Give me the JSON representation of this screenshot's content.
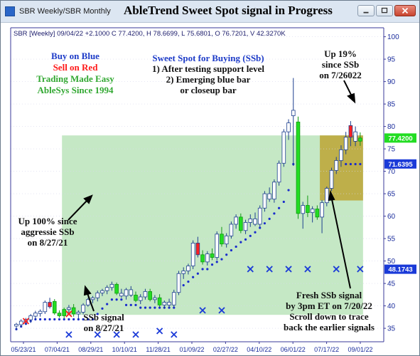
{
  "window": {
    "tab_label": "SBR Weekly/SBR Monthly",
    "title": "AbleTrend Sweet Spot signal in Progress"
  },
  "colors": {
    "up_bar": "#3b82f6",
    "down_bar": "#ff2020",
    "strong_up": "#22dd22",
    "dots": "#1a2ccc",
    "stop_x": "#1a3ad8",
    "green_zone": "#9fd89f",
    "gold_zone": "#bca534"
  },
  "chart_data": {
    "type": "candlestick",
    "info_line": "SBR [Weekly] 09/04/22 +2.1000 C 77.4200, H 78.6699, L 75.6801, O 76.7201, V 42.3270K",
    "ylim": [
      32,
      102
    ],
    "y_ticks": [
      35,
      40,
      45,
      50,
      55,
      60,
      65,
      70,
      75,
      80,
      85,
      90,
      95,
      100
    ],
    "x_tick_labels": [
      "05/23/21",
      "07/04/21",
      "08/29/21",
      "10/10/21",
      "11/28/21",
      "01/09/22",
      "02/27/22",
      "04/10/22",
      "06/01/22",
      "07/17/22",
      "09/01/22"
    ],
    "price_labels": [
      {
        "value": 77.42,
        "text": "77.4200",
        "color": "#22dd22"
      },
      {
        "value": 71.6395,
        "text": "71.6395",
        "color": "#1a3ad8"
      },
      {
        "value": 48.1743,
        "text": "48.1743",
        "color": "#1a3ad8"
      }
    ],
    "candles": [
      {
        "o": 35.5,
        "h": 36.2,
        "l": 34.6,
        "c": 35.9,
        "t": "up"
      },
      {
        "o": 35.8,
        "h": 37.0,
        "l": 35.2,
        "c": 36.6,
        "t": "up"
      },
      {
        "o": 36.5,
        "h": 37.3,
        "l": 35.8,
        "c": 37.0,
        "t": "up"
      },
      {
        "o": 36.9,
        "h": 38.2,
        "l": 36.2,
        "c": 37.8,
        "t": "up"
      },
      {
        "o": 37.7,
        "h": 38.9,
        "l": 37.0,
        "c": 38.4,
        "t": "up"
      },
      {
        "o": 38.3,
        "h": 39.2,
        "l": 37.6,
        "c": 38.8,
        "t": "up"
      },
      {
        "o": 38.7,
        "h": 41.2,
        "l": 38.2,
        "c": 40.8,
        "t": "up"
      },
      {
        "o": 40.8,
        "h": 41.8,
        "l": 39.4,
        "c": 39.8,
        "t": "down"
      },
      {
        "o": 41.0,
        "h": 41.5,
        "l": 38.0,
        "c": 38.4,
        "t": "strong"
      },
      {
        "o": 38.4,
        "h": 39.0,
        "l": 37.4,
        "c": 37.8,
        "t": "strong"
      },
      {
        "o": 37.8,
        "h": 39.6,
        "l": 37.2,
        "c": 39.2,
        "t": "strong"
      },
      {
        "o": 39.2,
        "h": 40.2,
        "l": 38.4,
        "c": 39.6,
        "t": "up"
      },
      {
        "o": 39.6,
        "h": 40.4,
        "l": 37.6,
        "c": 38.2,
        "t": "strong"
      },
      {
        "o": 38.2,
        "h": 39.0,
        "l": 37.1,
        "c": 38.6,
        "t": "up"
      },
      {
        "o": 38.6,
        "h": 40.6,
        "l": 38.1,
        "c": 40.2,
        "t": "up"
      },
      {
        "o": 40.2,
        "h": 41.8,
        "l": 39.8,
        "c": 41.4,
        "t": "up"
      },
      {
        "o": 41.4,
        "h": 42.2,
        "l": 40.6,
        "c": 41.8,
        "t": "up"
      },
      {
        "o": 41.8,
        "h": 43.4,
        "l": 41.0,
        "c": 42.9,
        "t": "up"
      },
      {
        "o": 42.9,
        "h": 43.8,
        "l": 42.2,
        "c": 43.4,
        "t": "up"
      },
      {
        "o": 43.4,
        "h": 44.6,
        "l": 42.6,
        "c": 44.1,
        "t": "up"
      },
      {
        "o": 44.1,
        "h": 45.4,
        "l": 43.4,
        "c": 44.8,
        "t": "up"
      },
      {
        "o": 44.8,
        "h": 45.2,
        "l": 42.4,
        "c": 42.8,
        "t": "strong"
      },
      {
        "o": 42.8,
        "h": 43.8,
        "l": 41.8,
        "c": 42.2,
        "t": "up"
      },
      {
        "o": 42.2,
        "h": 44.0,
        "l": 41.4,
        "c": 43.6,
        "t": "up"
      },
      {
        "o": 43.6,
        "h": 44.4,
        "l": 42.0,
        "c": 42.4,
        "t": "up"
      },
      {
        "o": 42.4,
        "h": 43.2,
        "l": 40.8,
        "c": 41.2,
        "t": "strong"
      },
      {
        "o": 41.2,
        "h": 42.6,
        "l": 40.4,
        "c": 42.0,
        "t": "up"
      },
      {
        "o": 42.0,
        "h": 43.8,
        "l": 41.4,
        "c": 43.2,
        "t": "up"
      },
      {
        "o": 43.2,
        "h": 43.8,
        "l": 41.0,
        "c": 41.4,
        "t": "strong"
      },
      {
        "o": 41.4,
        "h": 42.4,
        "l": 40.6,
        "c": 41.8,
        "t": "up"
      },
      {
        "o": 41.8,
        "h": 42.6,
        "l": 39.8,
        "c": 40.2,
        "t": "strong"
      },
      {
        "o": 40.2,
        "h": 41.2,
        "l": 39.4,
        "c": 40.8,
        "t": "up"
      },
      {
        "o": 40.8,
        "h": 41.6,
        "l": 39.6,
        "c": 40.2,
        "t": "up"
      },
      {
        "o": 40.2,
        "h": 43.6,
        "l": 39.8,
        "c": 43.0,
        "t": "up"
      },
      {
        "o": 43.0,
        "h": 47.8,
        "l": 42.4,
        "c": 47.2,
        "t": "up"
      },
      {
        "o": 47.2,
        "h": 48.6,
        "l": 46.0,
        "c": 47.8,
        "t": "up"
      },
      {
        "o": 47.8,
        "h": 49.4,
        "l": 47.0,
        "c": 48.9,
        "t": "up"
      },
      {
        "o": 48.9,
        "h": 54.6,
        "l": 48.2,
        "c": 54.0,
        "t": "up"
      },
      {
        "o": 54.0,
        "h": 55.4,
        "l": 50.8,
        "c": 51.4,
        "t": "down"
      },
      {
        "o": 51.4,
        "h": 52.4,
        "l": 49.2,
        "c": 49.8,
        "t": "strong"
      },
      {
        "o": 49.8,
        "h": 52.2,
        "l": 49.0,
        "c": 51.6,
        "t": "up"
      },
      {
        "o": 51.6,
        "h": 52.8,
        "l": 50.2,
        "c": 50.8,
        "t": "strong"
      },
      {
        "o": 50.8,
        "h": 56.6,
        "l": 50.2,
        "c": 56.0,
        "t": "up"
      },
      {
        "o": 56.0,
        "h": 57.6,
        "l": 53.2,
        "c": 53.8,
        "t": "strong"
      },
      {
        "o": 53.8,
        "h": 56.2,
        "l": 53.0,
        "c": 55.6,
        "t": "up"
      },
      {
        "o": 55.6,
        "h": 58.8,
        "l": 55.0,
        "c": 58.2,
        "t": "up"
      },
      {
        "o": 58.2,
        "h": 60.4,
        "l": 57.2,
        "c": 59.8,
        "t": "up"
      },
      {
        "o": 59.8,
        "h": 60.6,
        "l": 56.2,
        "c": 56.8,
        "t": "strong"
      },
      {
        "o": 56.8,
        "h": 59.2,
        "l": 56.0,
        "c": 58.6,
        "t": "up"
      },
      {
        "o": 58.6,
        "h": 60.4,
        "l": 57.6,
        "c": 59.4,
        "t": "up"
      },
      {
        "o": 59.4,
        "h": 60.8,
        "l": 57.8,
        "c": 58.2,
        "t": "up"
      },
      {
        "o": 58.2,
        "h": 62.4,
        "l": 57.6,
        "c": 61.8,
        "t": "up"
      },
      {
        "o": 61.8,
        "h": 65.6,
        "l": 61.0,
        "c": 65.0,
        "t": "up"
      },
      {
        "o": 65.0,
        "h": 66.4,
        "l": 63.2,
        "c": 63.8,
        "t": "up"
      },
      {
        "o": 63.8,
        "h": 68.2,
        "l": 63.0,
        "c": 67.6,
        "t": "up"
      },
      {
        "o": 67.6,
        "h": 72.4,
        "l": 66.8,
        "c": 71.8,
        "t": "up"
      },
      {
        "o": 71.8,
        "h": 79.4,
        "l": 71.0,
        "c": 78.8,
        "t": "up"
      },
      {
        "o": 78.8,
        "h": 81.6,
        "l": 77.0,
        "c": 80.8,
        "t": "up"
      },
      {
        "o": 82.4,
        "h": 90.8,
        "l": 71.2,
        "c": 83.6,
        "t": "up"
      },
      {
        "o": 81.0,
        "h": 82.2,
        "l": 59.4,
        "c": 60.6,
        "t": "strong"
      },
      {
        "o": 60.6,
        "h": 63.2,
        "l": 57.2,
        "c": 62.4,
        "t": "up"
      },
      {
        "o": 62.4,
        "h": 64.6,
        "l": 59.8,
        "c": 60.8,
        "t": "strong"
      },
      {
        "o": 60.8,
        "h": 62.2,
        "l": 58.6,
        "c": 61.6,
        "t": "up"
      },
      {
        "o": 61.6,
        "h": 62.4,
        "l": 59.2,
        "c": 59.8,
        "t": "strong"
      },
      {
        "o": 59.8,
        "h": 63.6,
        "l": 56.2,
        "c": 63.0,
        "t": "up"
      },
      {
        "o": 63.0,
        "h": 66.6,
        "l": 62.2,
        "c": 66.2,
        "t": "up"
      },
      {
        "o": 66.2,
        "h": 70.8,
        "l": 65.6,
        "c": 70.2,
        "t": "up"
      },
      {
        "o": 70.2,
        "h": 73.2,
        "l": 69.4,
        "c": 72.4,
        "t": "up"
      },
      {
        "o": 72.4,
        "h": 75.8,
        "l": 71.0,
        "c": 74.8,
        "t": "up"
      },
      {
        "o": 74.8,
        "h": 78.8,
        "l": 73.8,
        "c": 77.6,
        "t": "up"
      },
      {
        "o": 77.6,
        "h": 81.2,
        "l": 75.6,
        "c": 80.2,
        "t": "down"
      },
      {
        "o": 78.8,
        "h": 80.0,
        "l": 75.6,
        "c": 76.7,
        "t": "up"
      },
      {
        "o": 76.72,
        "h": 78.67,
        "l": 75.68,
        "c": 77.42,
        "t": "strong"
      }
    ],
    "support_dots": [
      {
        "i": 0,
        "v": 34.8
      },
      {
        "i": 1,
        "v": 35.4
      },
      {
        "i": 2,
        "v": 36.0
      },
      {
        "i": 3,
        "v": 36.6
      },
      {
        "i": 4,
        "v": 37.0
      },
      {
        "i": 5,
        "v": 37.0
      },
      {
        "i": 6,
        "v": 37.0
      },
      {
        "i": 7,
        "v": 37.0
      },
      {
        "i": 8,
        "v": 37.0
      },
      {
        "i": 9,
        "v": 37.0
      },
      {
        "i": 10,
        "v": 37.0
      },
      {
        "i": 11,
        "v": 37.0
      },
      {
        "i": 12,
        "v": 37.0
      },
      {
        "i": 13,
        "v": 37.0
      },
      {
        "i": 14,
        "v": 37.0
      },
      {
        "i": 15,
        "v": 37.0
      },
      {
        "i": 16,
        "v": 37.0
      },
      {
        "i": 17,
        "v": 38.2
      },
      {
        "i": 18,
        "v": 39.4
      },
      {
        "i": 19,
        "v": 40.4
      },
      {
        "i": 20,
        "v": 41.4
      },
      {
        "i": 21,
        "v": 41.4
      },
      {
        "i": 22,
        "v": 41.4
      },
      {
        "i": 23,
        "v": 40.2
      },
      {
        "i": 24,
        "v": 40.2
      },
      {
        "i": 25,
        "v": 40.2
      },
      {
        "i": 26,
        "v": 39.6
      },
      {
        "i": 27,
        "v": 39.6
      },
      {
        "i": 28,
        "v": 39.6
      },
      {
        "i": 29,
        "v": 39.6
      },
      {
        "i": 30,
        "v": 39.6
      },
      {
        "i": 31,
        "v": 39.6
      },
      {
        "i": 32,
        "v": 39.6
      },
      {
        "i": 33,
        "v": 39.6
      },
      {
        "i": 34,
        "v": 43.6
      },
      {
        "i": 35,
        "v": 44.6
      },
      {
        "i": 36,
        "v": 45.4
      },
      {
        "i": 37,
        "v": 46.4
      },
      {
        "i": 38,
        "v": 47.2
      },
      {
        "i": 39,
        "v": 48.2
      },
      {
        "i": 40,
        "v": 48.2
      },
      {
        "i": 41,
        "v": 49.2
      },
      {
        "i": 42,
        "v": 49.8
      },
      {
        "i": 43,
        "v": 50.4
      },
      {
        "i": 44,
        "v": 51.4
      },
      {
        "i": 45,
        "v": 52.4
      },
      {
        "i": 46,
        "v": 53.2
      },
      {
        "i": 47,
        "v": 54.2
      },
      {
        "i": 48,
        "v": 54.8
      },
      {
        "i": 49,
        "v": 55.6
      },
      {
        "i": 50,
        "v": 56.4
      },
      {
        "i": 51,
        "v": 57.4
      },
      {
        "i": 52,
        "v": 58.4
      },
      {
        "i": 53,
        "v": 59.4
      },
      {
        "i": 54,
        "v": 60.6
      },
      {
        "i": 55,
        "v": 61.8
      },
      {
        "i": 56,
        "v": 63.2
      },
      {
        "i": 57,
        "v": 65.8
      },
      {
        "i": 58,
        "v": 71.6
      },
      {
        "i": 69,
        "v": 71.6
      },
      {
        "i": 70,
        "v": 71.6
      },
      {
        "i": 71,
        "v": 71.6
      },
      {
        "i": 72,
        "v": 71.6
      }
    ],
    "stop_marks": [
      {
        "i": 2,
        "v": 36.6,
        "color": "#ff2020"
      },
      {
        "i": 11,
        "v": 38.2,
        "color": "#ff2020"
      },
      {
        "i": 11,
        "v": 33.6,
        "color": "#1a3ad8"
      },
      {
        "i": 17,
        "v": 33.6,
        "color": "#1a3ad8"
      },
      {
        "i": 21,
        "v": 33.6,
        "color": "#1a3ad8"
      },
      {
        "i": 25,
        "v": 33.6,
        "color": "#1a3ad8"
      },
      {
        "i": 30,
        "v": 34.4,
        "color": "#1a3ad8"
      },
      {
        "i": 33,
        "v": 33.6,
        "color": "#1a3ad8"
      },
      {
        "i": 39,
        "v": 39.0,
        "color": "#1a3ad8"
      },
      {
        "i": 43,
        "v": 39.0,
        "color": "#1a3ad8"
      },
      {
        "i": 49,
        "v": 48.2,
        "color": "#1a3ad8"
      },
      {
        "i": 53,
        "v": 48.2,
        "color": "#1a3ad8"
      },
      {
        "i": 57,
        "v": 48.2,
        "color": "#1a3ad8"
      },
      {
        "i": 61,
        "v": 48.2,
        "color": "#1a3ad8"
      },
      {
        "i": 67,
        "v": 48.2,
        "color": "#1a3ad8"
      },
      {
        "i": 72,
        "v": 48.2,
        "color": "#1a3ad8"
      }
    ],
    "zones": [
      {
        "i0": 10,
        "i1": 72,
        "y0": 38.0,
        "y1": 78.0,
        "kind": "green"
      },
      {
        "i0": 64,
        "i1": 72,
        "y0": 63.5,
        "y1": 78.0,
        "kind": "gold"
      }
    ],
    "annotations": {
      "legend_buy": "Buy on Blue",
      "legend_sell": "Sell on Red",
      "legend_easy": "Trading Made Easy",
      "legend_since": "AbleSys Since 1994",
      "sweet_title": "Sweet Spot for Buying (SSb)",
      "sweet_1": "1) After testing support level",
      "sweet_2": "2) Emerging blue bar",
      "sweet_3": "or closeup bar",
      "up19_1": "Up 19%",
      "up19_2": "since SSb",
      "up19_3": "on 7/26022",
      "up100_1": "Up 100% since",
      "up100_2": "aggressie SSb",
      "up100_3": "on 8/27/21",
      "ssb_1": "SSb signal",
      "ssb_2": "on 8/27/21",
      "fresh_1": "Fresh SSb signal",
      "fresh_2": "by 3pm ET on 7/20/22",
      "fresh_3": "Scroll down to trace",
      "fresh_4": "back the earlier signals"
    }
  }
}
